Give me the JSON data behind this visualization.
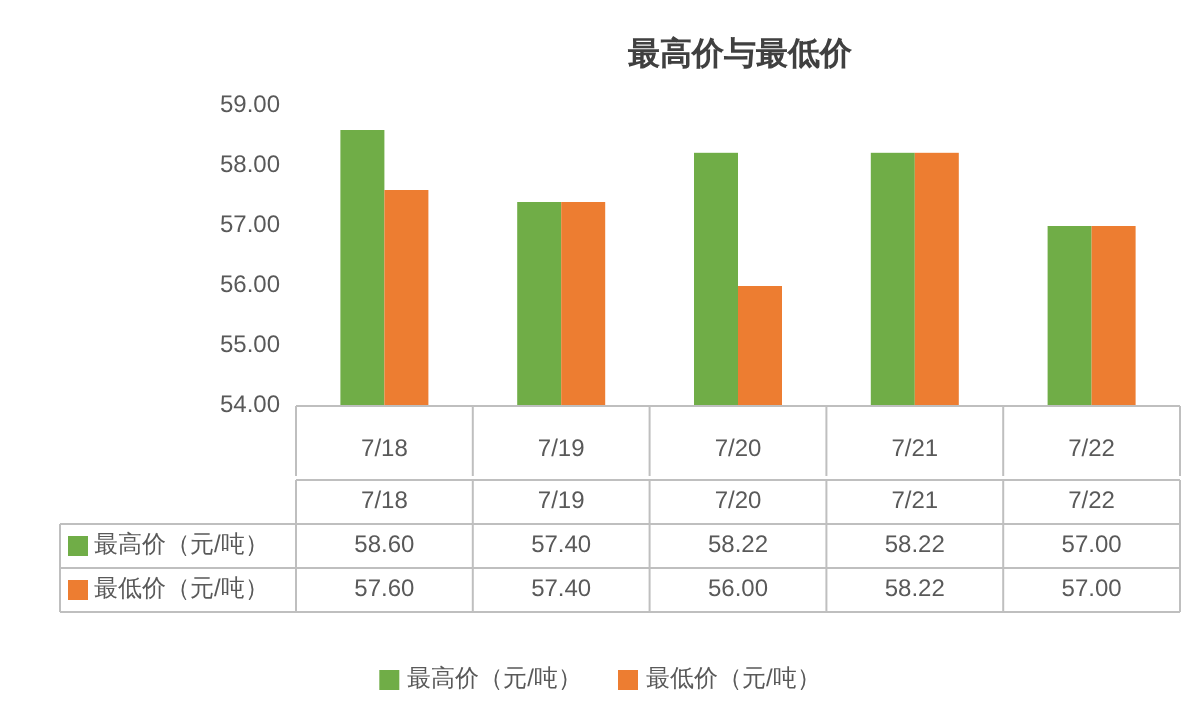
{
  "chart_data": {
    "type": "bar",
    "title": "最高价与最低价",
    "categories": [
      "7/18",
      "7/19",
      "7/20",
      "7/21",
      "7/22"
    ],
    "series": [
      {
        "name": "最高价（元/吨）",
        "color": "#70ad47",
        "values": [
          58.6,
          57.4,
          58.22,
          58.22,
          57.0
        ],
        "value_labels": [
          "58.60",
          "57.40",
          "58.22",
          "58.22",
          "57.00"
        ]
      },
      {
        "name": "最低价（元/吨）",
        "color": "#ed7d31",
        "values": [
          57.6,
          57.4,
          56.0,
          58.22,
          57.0
        ],
        "value_labels": [
          "57.60",
          "57.40",
          "56.00",
          "58.22",
          "57.00"
        ]
      }
    ],
    "ylim": [
      54,
      59
    ],
    "yticks": [
      {
        "value": 54,
        "label": "54.00"
      },
      {
        "value": 55,
        "label": "55.00"
      },
      {
        "value": 56,
        "label": "56.00"
      },
      {
        "value": 57,
        "label": "57.00"
      },
      {
        "value": 58,
        "label": "58.00"
      },
      {
        "value": 59,
        "label": "59.00"
      }
    ],
    "legend": "bottom"
  }
}
